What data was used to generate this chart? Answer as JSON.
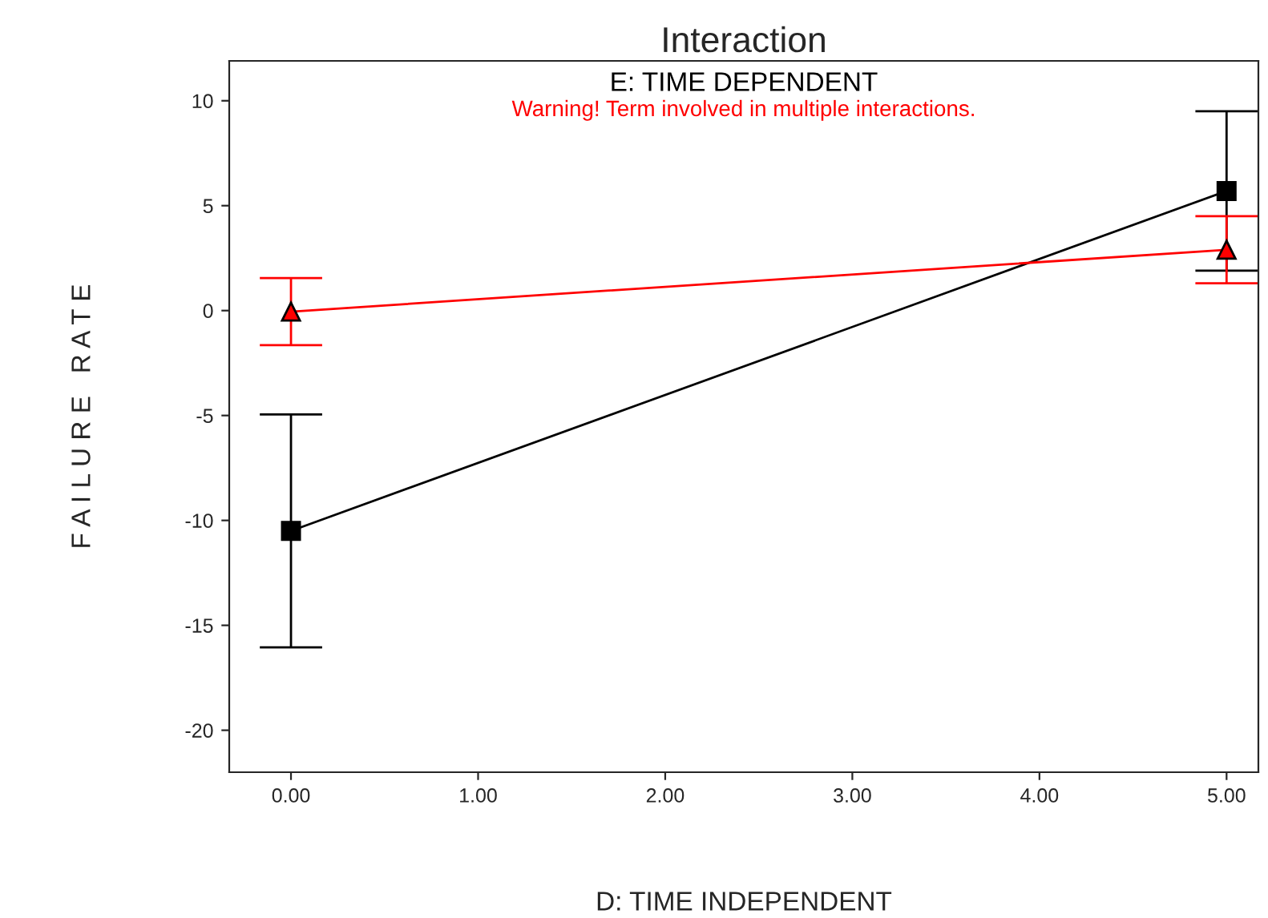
{
  "chart_data": {
    "type": "line",
    "title": "Interaction",
    "xlabel": "D: TIME INDEPENDENT",
    "ylabel": "F A I L U R E   R A T E",
    "annotations": [
      "E: TIME DEPENDENT",
      "Warning! Term involved in multiple interactions."
    ],
    "x": [
      0,
      5
    ],
    "series": [
      {
        "color": "#000000",
        "values": [
          -10.5,
          5.7
        ],
        "errors": [
          5.55,
          3.8
        ],
        "marker": "square"
      },
      {
        "color": "#ff0000",
        "values": [
          -0.05,
          2.9
        ],
        "errors": [
          1.6,
          1.6
        ],
        "marker": "triangle"
      }
    ],
    "xlim": [
      -0.33,
      5.17
    ],
    "ylim": [
      -22,
      11.9
    ],
    "xticks": [
      {
        "value": 0,
        "label": "0.00"
      },
      {
        "value": 1,
        "label": "1.00"
      },
      {
        "value": 2,
        "label": "2.00"
      },
      {
        "value": 3,
        "label": "3.00"
      },
      {
        "value": 4,
        "label": "4.00"
      },
      {
        "value": 5,
        "label": "5.00"
      }
    ],
    "yticks": [
      -20,
      -15,
      -10,
      -5,
      0,
      5,
      10
    ],
    "grid": false,
    "legend": false
  }
}
